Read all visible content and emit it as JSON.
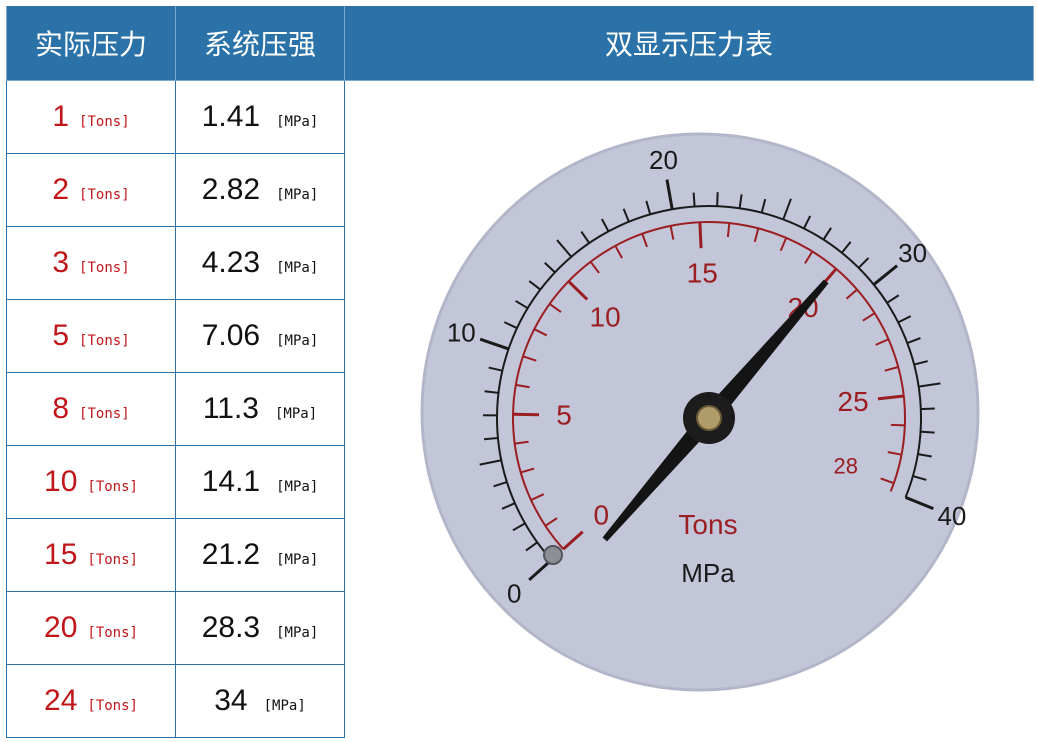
{
  "header": {
    "col1": "实际压力",
    "col2": "系统压强",
    "col3": "双显示压力表"
  },
  "rows": [
    {
      "tons": "1",
      "tons_unit": "[Tons]",
      "mpa": "1.41",
      "mpa_unit": "[MPa]"
    },
    {
      "tons": "2",
      "tons_unit": "[Tons]",
      "mpa": "2.82",
      "mpa_unit": "[MPa]"
    },
    {
      "tons": "3",
      "tons_unit": "[Tons]",
      "mpa": "4.23",
      "mpa_unit": "[MPa]"
    },
    {
      "tons": "5",
      "tons_unit": "[Tons]",
      "mpa": "7.06",
      "mpa_unit": "[MPa]"
    },
    {
      "tons": "8",
      "tons_unit": "[Tons]",
      "mpa": "11.3",
      "mpa_unit": "[MPa]"
    },
    {
      "tons": "10",
      "tons_unit": "[Tons]",
      "mpa": "14.1",
      "mpa_unit": "[MPa]"
    },
    {
      "tons": "15",
      "tons_unit": "[Tons]",
      "mpa": "21.2",
      "mpa_unit": "[MPa]"
    },
    {
      "tons": "20",
      "tons_unit": "[Tons]",
      "mpa": "28.3",
      "mpa_unit": "[MPa]"
    },
    {
      "tons": "24",
      "tons_unit": "[Tons]",
      "mpa": "34",
      "mpa_unit": "[MPa]"
    }
  ],
  "gauge": {
    "outer_scale_labels": [
      "0",
      "10",
      "20",
      "30",
      "40"
    ],
    "inner_scale_labels": [
      "0",
      "5",
      "10",
      "15",
      "20",
      "25",
      "28"
    ],
    "inner_unit": "Tons",
    "outer_unit": "MPa",
    "needle_reading_mpa": 28.3,
    "colors": {
      "face": "#c3c6d8",
      "outer_scale": "#1a1a1a",
      "inner_scale": "#9a1e22",
      "needle": "#141414"
    }
  },
  "colors": {
    "header_bg": "#2a72a8",
    "header_text": "#ffffff",
    "tons_text": "#c0161a",
    "mpa_text": "#111111",
    "border": "#2a72a8"
  }
}
